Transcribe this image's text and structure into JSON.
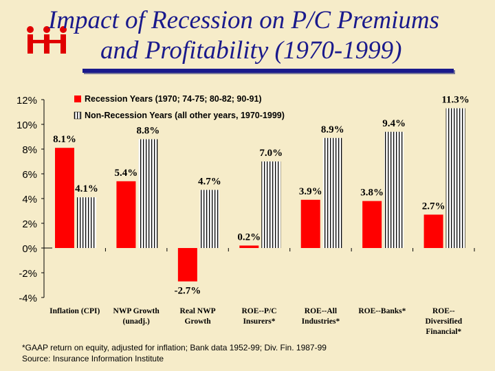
{
  "colors": {
    "title": "#1a1a8c",
    "recession": "#ff0000",
    "nonrecession": "#ffffff",
    "logo": "#e00000"
  },
  "logo_icon": "iii-logo-icon",
  "title_line1": "Impact of Recession on P/C Premiums",
  "title_line2": "and Profitability (1970-1999)",
  "footnote": "*GAAP return on equity, adjusted for inflation; Bank data 1952-99; Div. Fin. 1987-99",
  "source": "Source: Insurance Information Institute",
  "chart_data": {
    "type": "bar",
    "categories": [
      [
        "Inflation (CPI)"
      ],
      [
        "NWP Growth",
        "(unadj.)"
      ],
      [
        "Real NWP",
        "Growth"
      ],
      [
        "ROE--P/C",
        "Insurers*"
      ],
      [
        "ROE--All",
        "Industries*"
      ],
      [
        "ROE--Banks*"
      ],
      [
        "ROE--",
        "Diversified",
        "Financial*"
      ]
    ],
    "series": [
      {
        "name": "Recession Years (1970; 74-75; 80-82; 90-91)",
        "values": [
          8.1,
          5.4,
          -2.7,
          0.2,
          3.9,
          3.8,
          2.7
        ]
      },
      {
        "name": "Non-Recession Years (all other years, 1970-1999)",
        "values": [
          4.1,
          8.8,
          4.7,
          7.0,
          8.9,
          9.4,
          11.3
        ]
      }
    ],
    "value_labels": [
      [
        "8.1%",
        "5.4%",
        "-2.7%",
        "0.2%",
        "3.9%",
        "3.8%",
        "2.7%"
      ],
      [
        "4.1%",
        "8.8%",
        "4.7%",
        "7.0%",
        "8.9%",
        "9.4%",
        "11.3%"
      ]
    ],
    "yticks": [
      "-4%",
      "-2%",
      "0%",
      "2%",
      "4%",
      "6%",
      "8%",
      "10%",
      "12%"
    ],
    "ylim": [
      -4,
      12
    ],
    "legend_position": "top-left"
  }
}
